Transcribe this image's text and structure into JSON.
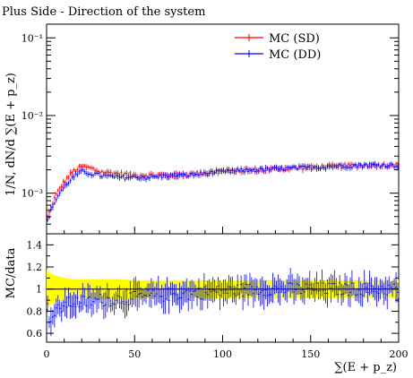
{
  "chart_data": {
    "type": "line",
    "title": "Plus Side - Direction of the system",
    "xlabel": "∑(E + p_z)",
    "ylabel_main": "1/N, dN/d ∑(E + p_z)",
    "ylabel_ratio": "MC/data",
    "xlim": [
      0,
      200
    ],
    "main_ylim": [
      0.0003,
      0.15
    ],
    "main_yscale": "log",
    "ratio_ylim": [
      0.52,
      1.5
    ],
    "x_ticks": [
      0,
      50,
      100,
      150,
      200
    ],
    "main_y_ticks": [
      {
        "value": 0.1,
        "label": "10⁻¹"
      },
      {
        "value": 0.01,
        "label": "10⁻²"
      },
      {
        "value": 0.001,
        "label": "10⁻³"
      }
    ],
    "ratio_y_ticks": [
      0.6,
      0.8,
      1,
      1.2,
      1.4
    ],
    "legend_position": "top-right",
    "series": [
      {
        "name": "MC (SD)",
        "color": "#ff0000"
      },
      {
        "name": "MC (DD)",
        "color": "#0000ff"
      }
    ],
    "data_band_color": "#ffff00",
    "main_profile": {
      "x": [
        0,
        2,
        5,
        10,
        15,
        20,
        25,
        30,
        40,
        50,
        60,
        70,
        80,
        100,
        120,
        140,
        160,
        180,
        200
      ],
      "sd": [
        0.00045,
        0.0006,
        0.0009,
        0.0014,
        0.0019,
        0.0022,
        0.0021,
        0.0019,
        0.0018,
        0.0017,
        0.0017,
        0.0017,
        0.00175,
        0.0019,
        0.002,
        0.0021,
        0.0022,
        0.0023,
        0.0023
      ],
      "dd": [
        0.0004,
        0.00055,
        0.0008,
        0.0012,
        0.0016,
        0.0019,
        0.0018,
        0.0017,
        0.0016,
        0.0016,
        0.0016,
        0.0017,
        0.0017,
        0.0019,
        0.002,
        0.0021,
        0.0022,
        0.0023,
        0.0023
      ]
    },
    "ratio_profile": {
      "x": [
        0,
        2,
        5,
        10,
        15,
        20,
        30,
        40,
        50,
        60,
        80,
        100,
        120,
        140,
        160,
        180,
        200
      ],
      "dd": [
        0.85,
        0.72,
        0.78,
        0.86,
        0.88,
        0.88,
        0.9,
        0.91,
        0.92,
        0.94,
        0.96,
        0.98,
        1.0,
        1.0,
        1.0,
        1.0,
        1.0
      ],
      "band_half": [
        0.18,
        0.14,
        0.12,
        0.1,
        0.09,
        0.09,
        0.09,
        0.09,
        0.08,
        0.08,
        0.08,
        0.08,
        0.08,
        0.08,
        0.08,
        0.08,
        0.08
      ]
    }
  }
}
